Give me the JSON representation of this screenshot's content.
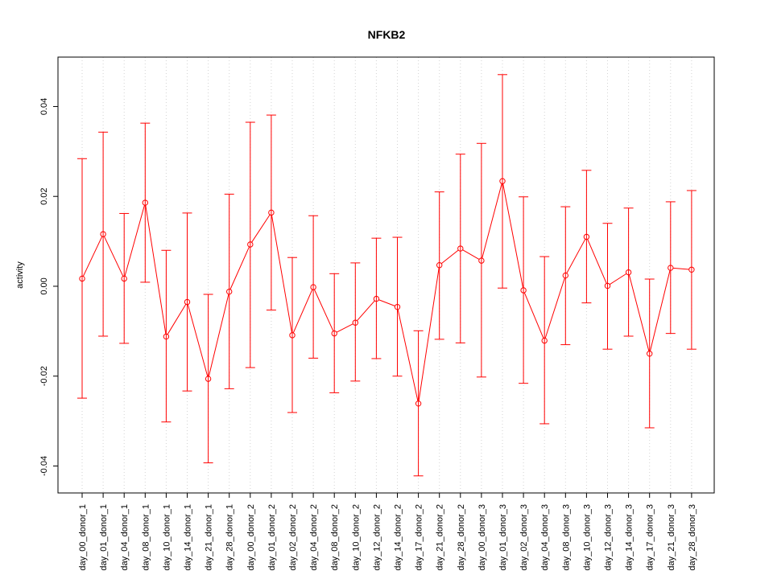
{
  "chart_data": {
    "type": "line",
    "title": "NFKB2",
    "xlabel": "",
    "ylabel": "activity",
    "ylim": [
      -0.046,
      0.051
    ],
    "yticks": [
      -0.04,
      -0.02,
      0.0,
      0.02,
      0.04
    ],
    "ytick_labels": [
      "-0.04",
      "-0.02",
      "0.00",
      "0.02",
      "0.04"
    ],
    "grid": "vertical dotted",
    "color": "#ff0000",
    "categories": [
      "day_00_donor_1",
      "day_01_donor_1",
      "day_04_donor_1",
      "day_08_donor_1",
      "day_10_donor_1",
      "day_14_donor_1",
      "day_21_donor_1",
      "day_28_donor_1",
      "day_00_donor_2",
      "day_01_donor_2",
      "day_02_donor_2",
      "day_04_donor_2",
      "day_08_donor_2",
      "day_10_donor_2",
      "day_12_donor_2",
      "day_14_donor_2",
      "day_17_donor_2",
      "day_21_donor_2",
      "day_28_donor_2",
      "day_00_donor_3",
      "day_01_donor_3",
      "day_02_donor_3",
      "day_04_donor_3",
      "day_08_donor_3",
      "day_10_donor_3",
      "day_12_donor_3",
      "day_14_donor_3",
      "day_17_donor_3",
      "day_21_donor_3",
      "day_28_donor_3"
    ],
    "series": [
      {
        "values": [
          0.0017,
          0.0116,
          0.0017,
          0.0186,
          -0.0112,
          -0.0035,
          -0.0206,
          -0.0012,
          0.0093,
          0.0164,
          -0.0109,
          -0.0002,
          -0.0105,
          -0.0081,
          -0.0028,
          -0.0046,
          -0.0261,
          0.0047,
          0.0084,
          0.0057,
          0.0234,
          -0.0009,
          -0.0121,
          0.0024,
          0.011,
          0.0001,
          0.0031,
          -0.015,
          0.0041,
          0.0037
        ],
        "lower": [
          -0.0249,
          -0.0111,
          -0.0127,
          0.0009,
          -0.0302,
          -0.0233,
          -0.0393,
          -0.0228,
          -0.0181,
          -0.0053,
          -0.0281,
          -0.016,
          -0.0237,
          -0.0211,
          -0.0161,
          -0.02,
          -0.0422,
          -0.0118,
          -0.0126,
          -0.0202,
          -0.0004,
          -0.0216,
          -0.0306,
          -0.013,
          -0.0037,
          -0.014,
          -0.0111,
          -0.0315,
          -0.0105,
          -0.014
        ],
        "upper": [
          0.0284,
          0.0343,
          0.0162,
          0.0363,
          0.008,
          0.0163,
          -0.0018,
          0.0205,
          0.0365,
          0.0381,
          0.0064,
          0.0157,
          0.0028,
          0.0052,
          0.0107,
          0.0109,
          -0.0099,
          0.021,
          0.0294,
          0.0318,
          0.0471,
          0.0199,
          0.0066,
          0.0177,
          0.0258,
          0.014,
          0.0174,
          0.0016,
          0.0188,
          0.0213
        ]
      }
    ]
  }
}
